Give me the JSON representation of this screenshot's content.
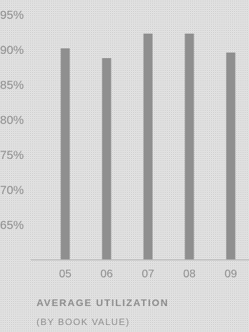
{
  "chart_data": {
    "type": "bar",
    "title": "AVERAGE UTILIZATION",
    "subtitle": "(BY BOOK VALUE)",
    "categories": [
      "05",
      "06",
      "07",
      "08",
      "09"
    ],
    "values": [
      90.2,
      88.8,
      92.3,
      92.3,
      89.6
    ],
    "y_ticks": [
      "95%",
      "90%",
      "85%",
      "80%",
      "75%",
      "70%",
      "65%"
    ],
    "ylim": [
      60,
      95
    ],
    "grid": false,
    "legend": "none",
    "colors": {
      "bar": "#8f8f8f",
      "axis": "#b8b8b8",
      "text": "#8a8a8a"
    }
  }
}
